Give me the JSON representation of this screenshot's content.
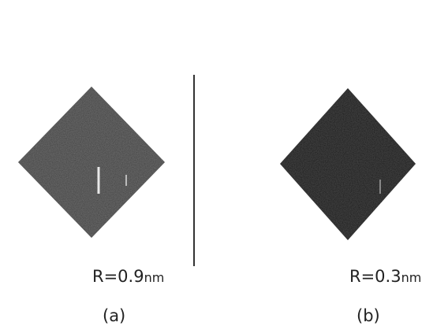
{
  "panels": [
    {
      "radius_label": "R=0.9",
      "unit": "nm",
      "caption": "(a)"
    },
    {
      "radius_label": "R=0.3",
      "unit": "nm",
      "caption": "(b)"
    }
  ]
}
